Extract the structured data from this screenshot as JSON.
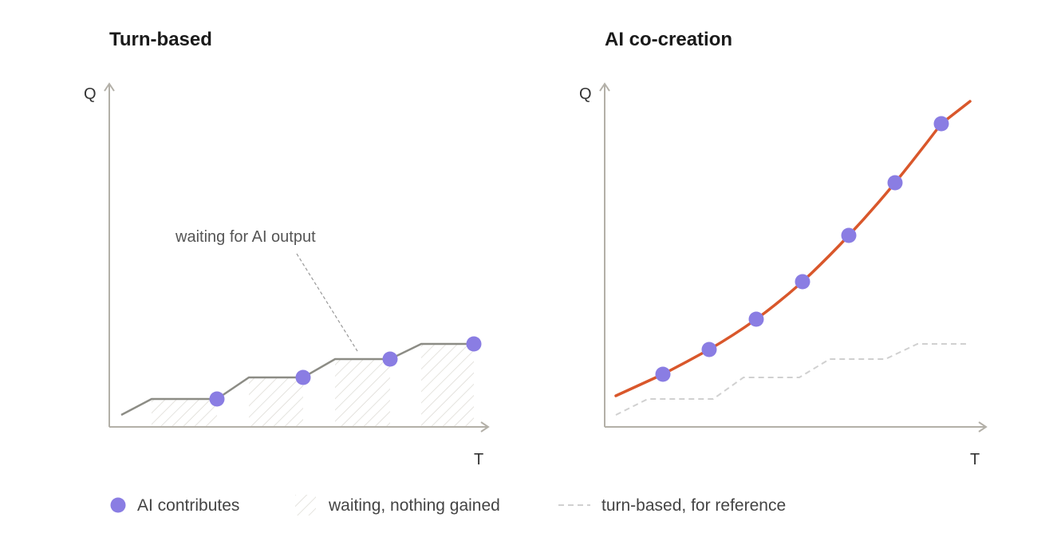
{
  "panels": [
    {
      "title": "Turn-based",
      "y_label": "Q",
      "x_label": "T",
      "annotation": "waiting for AI output"
    },
    {
      "title": "AI co-creation",
      "y_label": "Q",
      "x_label": "T"
    }
  ],
  "legend": [
    "AI contributes",
    "waiting, nothing gained",
    "turn-based, for reference"
  ]
}
